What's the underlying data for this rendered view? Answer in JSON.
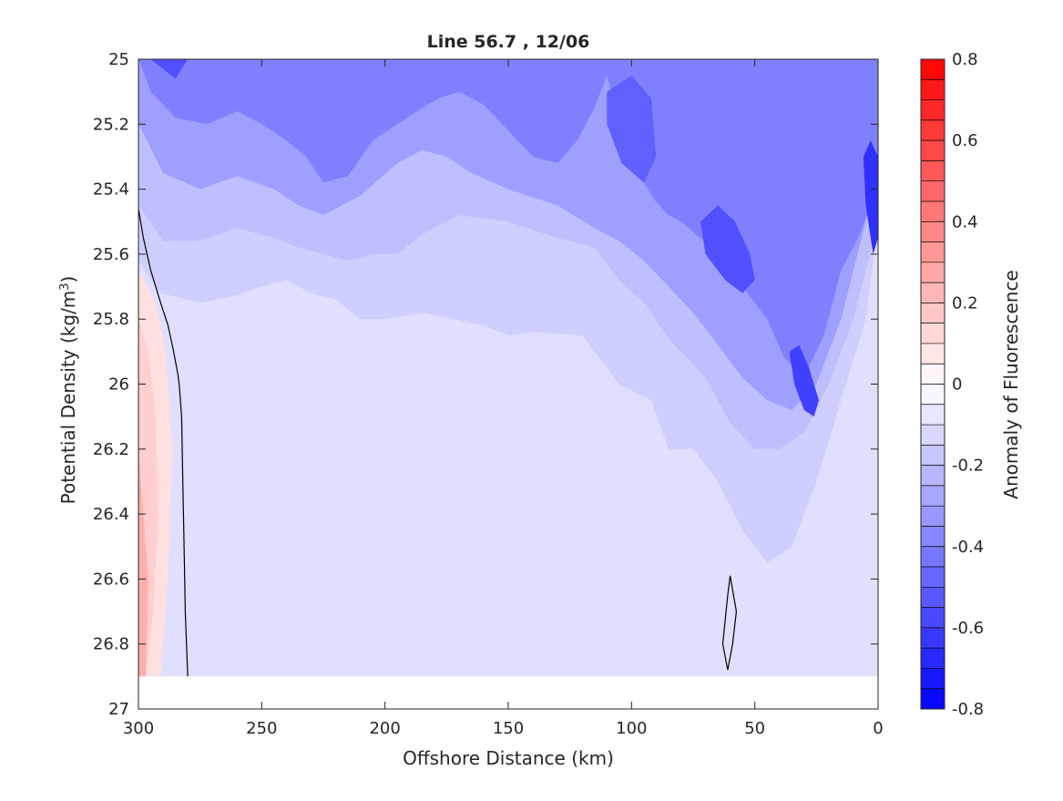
{
  "chart_data": {
    "type": "heatmap",
    "subtype": "filled-contour",
    "title": "Line 56.7 , 12/06",
    "xlabel": "Offshore Distance (km)",
    "ylabel_main": "Potential Density (kg/m",
    "ylabel_sup": "3",
    "ylabel_end": ")",
    "colorbar_label": "Anomaly of Fluorescence",
    "x_reversed": true,
    "xlim": [
      0,
      300
    ],
    "ylim": [
      25,
      27
    ],
    "y_reversed": true,
    "xticks": [
      "300",
      "250",
      "200",
      "150",
      "100",
      "50",
      "0"
    ],
    "xtick_values": [
      300,
      250,
      200,
      150,
      100,
      50,
      0
    ],
    "yticks": [
      "25",
      "25.2",
      "25.4",
      "25.6",
      "25.8",
      "26",
      "26.2",
      "26.4",
      "26.6",
      "26.8",
      "27"
    ],
    "ytick_values": [
      25,
      25.2,
      25.4,
      25.6,
      25.8,
      26,
      26.2,
      26.4,
      26.6,
      26.8,
      27
    ],
    "colorbar_ticks": [
      "0.8",
      "0.6",
      "0.4",
      "0.2",
      "0",
      "-0.2",
      "-0.4",
      "-0.6",
      "-0.8"
    ],
    "colorbar_tick_values": [
      0.8,
      0.6,
      0.4,
      0.2,
      0,
      -0.2,
      -0.4,
      -0.6,
      -0.8
    ],
    "clim": [
      -0.8,
      0.8
    ],
    "contour_step": 0.05,
    "colormap": {
      "negative": "#0000ff",
      "zero": "#ffffff",
      "positive": "#ff0000"
    },
    "data_extent": {
      "x": [
        0,
        300
      ],
      "y": [
        25,
        26.9
      ]
    },
    "zero_contour_lines": [
      {
        "x": [
          300,
          298,
          295,
          291,
          288,
          286,
          285,
          284,
          283.5,
          282.5,
          282,
          281.5,
          281,
          280
        ],
        "y": [
          25.46,
          25.55,
          25.65,
          25.75,
          25.82,
          25.89,
          25.93,
          25.97,
          26.0,
          26.1,
          26.3,
          26.5,
          26.7,
          26.9
        ]
      },
      {
        "x": [
          60,
          57.5,
          59,
          61,
          63,
          61,
          60
        ],
        "y": [
          26.59,
          26.7,
          26.8,
          26.88,
          26.8,
          26.65,
          26.59
        ]
      }
    ],
    "region_levels": [
      {
        "x": [
          0,
          300,
          300,
          0
        ],
        "y": [
          25,
          25,
          26.9,
          26.9
        ],
        "level": -0.1
      },
      {
        "x": [
          300,
          300,
          291,
          275,
          262,
          250,
          240,
          230,
          220,
          210,
          200,
          185,
          172,
          160,
          150,
          140,
          120,
          105,
          92,
          85,
          75,
          65,
          55,
          45,
          35,
          25,
          15,
          5,
          0,
          0
        ],
        "y": [
          25,
          25.62,
          25.72,
          25.75,
          25.73,
          25.7,
          25.68,
          25.72,
          25.74,
          25.8,
          25.8,
          25.78,
          25.8,
          25.82,
          25.85,
          25.84,
          25.85,
          26.0,
          26.05,
          26.2,
          26.2,
          26.3,
          26.45,
          26.55,
          26.5,
          26.3,
          26.05,
          25.8,
          25.5,
          25
        ],
        "level": -0.15
      },
      {
        "x": [
          300,
          300,
          290,
          275,
          260,
          245,
          235,
          225,
          215,
          205,
          195,
          185,
          170,
          150,
          130,
          115,
          105,
          95,
          85,
          70,
          60,
          50,
          40,
          30,
          20,
          10,
          0,
          0
        ],
        "y": [
          25,
          25.45,
          25.56,
          25.56,
          25.52,
          25.55,
          25.58,
          25.6,
          25.62,
          25.6,
          25.6,
          25.54,
          25.48,
          25.5,
          25.55,
          25.58,
          25.68,
          25.75,
          25.86,
          25.98,
          26.12,
          26.2,
          26.2,
          26.15,
          26.0,
          25.8,
          25.5,
          25
        ],
        "level": -0.2
      },
      {
        "x": [
          300,
          300,
          290,
          275,
          260,
          245,
          235,
          225,
          210,
          195,
          185,
          175,
          165,
          150,
          130,
          115,
          105,
          95,
          85,
          75,
          65,
          55,
          45,
          35,
          25,
          15,
          5,
          0,
          0
        ],
        "y": [
          25,
          25.2,
          25.35,
          25.4,
          25.36,
          25.4,
          25.45,
          25.48,
          25.42,
          25.32,
          25.28,
          25.3,
          25.35,
          25.4,
          25.45,
          25.52,
          25.56,
          25.62,
          25.7,
          25.78,
          25.88,
          25.98,
          26.05,
          26.08,
          26.0,
          25.8,
          25.5,
          25.3,
          25
        ],
        "level": -0.3
      },
      {
        "x": [
          300,
          295,
          285,
          272,
          260,
          250,
          240,
          232,
          225,
          215,
          205,
          195,
          185,
          178,
          170,
          160,
          150,
          140,
          130,
          122,
          115,
          110,
          105,
          100,
          95,
          90,
          85,
          80,
          72,
          65,
          55,
          45,
          38,
          30,
          22,
          15,
          8,
          3,
          0,
          0
        ],
        "y": [
          25,
          25.1,
          25.18,
          25.2,
          25.16,
          25.2,
          25.25,
          25.3,
          25.38,
          25.36,
          25.25,
          25.2,
          25.15,
          25.12,
          25.1,
          25.14,
          25.22,
          25.3,
          25.32,
          25.25,
          25.15,
          25.05,
          25.2,
          25.32,
          25.38,
          25.44,
          25.48,
          25.5,
          25.55,
          25.6,
          25.7,
          25.8,
          25.92,
          25.98,
          25.85,
          25.65,
          25.55,
          25.45,
          25.38,
          25
        ],
        "level": -0.4
      },
      {
        "x": [
          295,
          290,
          285,
          280,
          285,
          290,
          295
        ],
        "y": [
          25,
          25.03,
          25.06,
          25,
          25,
          25,
          25
        ],
        "level": -0.55
      },
      {
        "x": [
          110,
          100,
          92,
          90,
          95,
          104,
          110
        ],
        "y": [
          25.1,
          25.05,
          25.12,
          25.3,
          25.38,
          25.32,
          25.2
        ],
        "level": -0.5
      },
      {
        "x": [
          72,
          65,
          58,
          52,
          50,
          55,
          62,
          70,
          72
        ],
        "y": [
          25.5,
          25.45,
          25.5,
          25.6,
          25.68,
          25.72,
          25.68,
          25.6,
          25.5
        ],
        "level": -0.55
      },
      {
        "x": [
          36,
          32,
          28,
          24,
          26,
          30,
          34,
          36
        ],
        "y": [
          25.9,
          25.88,
          25.95,
          26.05,
          26.1,
          26.08,
          26.0,
          25.9
        ],
        "level": -0.6
      },
      {
        "x": [
          6,
          3,
          0,
          0,
          2,
          5,
          6
        ],
        "y": [
          25.3,
          25.25,
          25.3,
          25.55,
          25.6,
          25.45,
          25.3
        ],
        "level": -0.65
      },
      {
        "x": [
          300,
          293,
          289,
          286,
          288,
          291,
          295,
          300
        ],
        "y": [
          25.65,
          25.75,
          25.9,
          26.2,
          26.6,
          26.9,
          26.9,
          26.9
        ],
        "level": 0.1
      },
      {
        "x": [
          300,
          296,
          293,
          292,
          294,
          297,
          300
        ],
        "y": [
          25.8,
          25.9,
          26.1,
          26.4,
          26.7,
          26.9,
          26.9
        ],
        "level": 0.15
      },
      {
        "x": [
          300,
          298,
          296,
          297,
          300
        ],
        "y": [
          26.2,
          26.4,
          26.6,
          26.9,
          26.9
        ],
        "level": 0.25
      },
      {
        "x": [
          300,
          275,
          265,
          255,
          248,
          240,
          235,
          230,
          225,
          220,
          210,
          200,
          190,
          182,
          175,
          170,
          165,
          160,
          150,
          140,
          130,
          122,
          115,
          110,
          105,
          100,
          92,
          85,
          78,
          72,
          65,
          58,
          50,
          44,
          40,
          35,
          30,
          25,
          20,
          15,
          10,
          5,
          0,
          0
        ],
        "y": [
          27,
          27,
          27,
          27,
          27,
          27,
          27,
          27,
          27,
          27,
          27,
          27,
          27,
          27,
          27,
          27,
          27,
          27,
          27,
          27,
          27,
          27,
          27,
          27,
          27,
          27,
          27,
          27,
          27,
          27,
          27,
          27,
          27,
          27,
          27,
          27,
          27,
          27,
          27,
          27,
          27,
          27,
          27,
          26.9
        ],
        "level": null
      }
    ]
  }
}
